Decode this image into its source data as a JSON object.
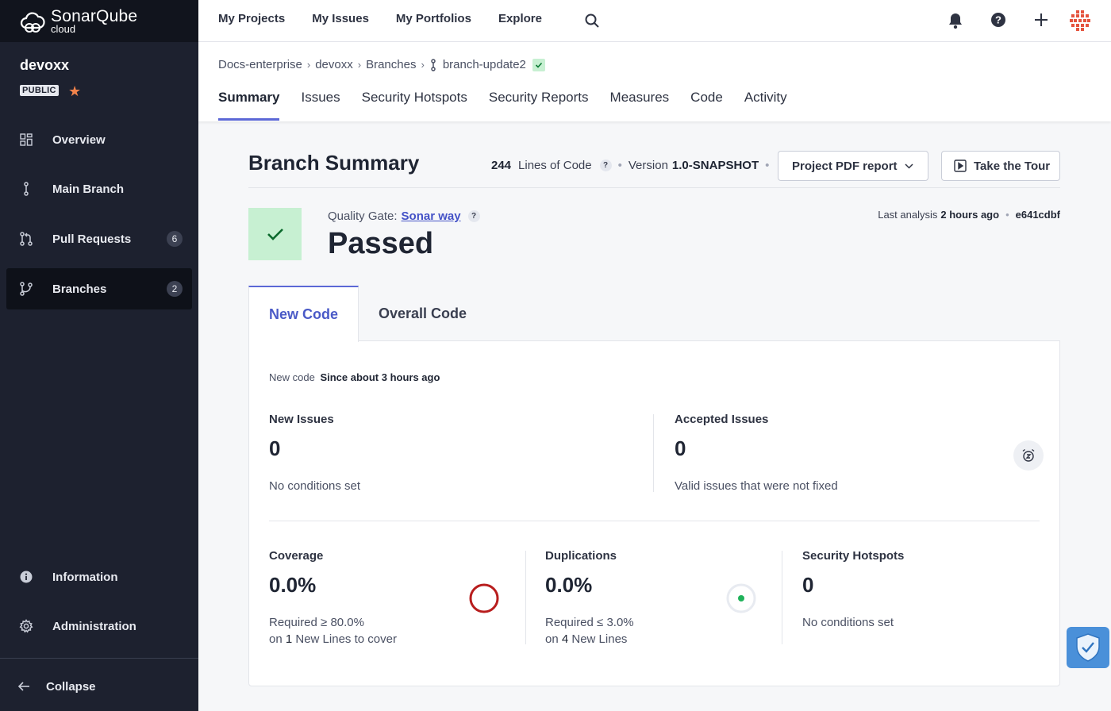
{
  "logo": {
    "line1": "SonarQube",
    "line2": "cloud"
  },
  "project": {
    "name": "devoxx",
    "visibility": "PUBLIC"
  },
  "sidebar": {
    "items": [
      {
        "label": "Overview"
      },
      {
        "label": "Main Branch"
      },
      {
        "label": "Pull Requests",
        "count": "6"
      },
      {
        "label": "Branches",
        "count": "2"
      },
      {
        "label": "Information"
      },
      {
        "label": "Administration"
      }
    ],
    "collapse": "Collapse"
  },
  "topnav": [
    "My Projects",
    "My Issues",
    "My Portfolios",
    "Explore"
  ],
  "breadcrumb": [
    "Docs-enterprise",
    "devoxx",
    "Branches",
    "branch-update2"
  ],
  "tabs": [
    "Summary",
    "Issues",
    "Security Hotspots",
    "Security Reports",
    "Measures",
    "Code",
    "Activity"
  ],
  "summary": {
    "title": "Branch Summary",
    "loc_value": "244",
    "loc_label": "Lines of Code",
    "version_label": "Version",
    "version_value": "1.0-SNAPSHOT",
    "pdf_button": "Project PDF report",
    "tour_button": "Take the Tour"
  },
  "quality_gate": {
    "label": "Quality Gate:",
    "name": "Sonar way",
    "status": "Passed",
    "last_analysis_label": "Last analysis",
    "last_analysis_value": "2 hours ago",
    "commit": "e641cdbf"
  },
  "code_tabs": [
    "New Code",
    "Overall Code"
  ],
  "new_code": {
    "label": "New code",
    "value": "Since about 3 hours ago"
  },
  "metrics": {
    "new_issues": {
      "title": "New Issues",
      "value": "0",
      "sub": "No conditions set"
    },
    "accepted_issues": {
      "title": "Accepted Issues",
      "value": "0",
      "sub": "Valid issues that were not fixed"
    },
    "coverage": {
      "title": "Coverage",
      "value": "0.0%",
      "req": "Required ≥ 80.0%",
      "on": "on",
      "count": "1",
      "tail": "New Lines to cover"
    },
    "duplications": {
      "title": "Duplications",
      "value": "0.0%",
      "req": "Required ≤ 3.0%",
      "on": "on",
      "count": "4",
      "tail": "New Lines"
    },
    "hotspots": {
      "title": "Security Hotspots",
      "value": "0",
      "sub": "No conditions set"
    }
  },
  "colors": {
    "accent": "#5c68d6",
    "passed": "#c7f0d2",
    "coverage_fail": "#b81d1d",
    "dup_ok": "#1fb25a",
    "sidebar": "#1d212f"
  }
}
